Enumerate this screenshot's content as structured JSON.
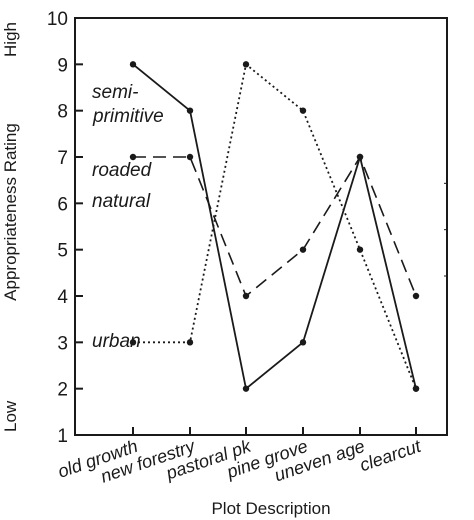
{
  "chart_data": {
    "type": "line",
    "title": "",
    "xlabel": "Plot Description",
    "ylabel": "Appropriateness Rating",
    "y_high_label": "High",
    "y_low_label": "Low",
    "ylim": [
      1,
      10
    ],
    "yticks": [
      "1",
      "2",
      "3",
      "4",
      "5",
      "6",
      "7",
      "8",
      "9",
      "10"
    ],
    "categories": [
      "old growth",
      "new forestry",
      "pastoral pk",
      "pine grove",
      "uneven age",
      "clearcut"
    ],
    "series": [
      {
        "name": "semi-primitive",
        "label_lines": [
          "semi-",
          "primitive"
        ],
        "style": "solid",
        "values": [
          9,
          8,
          2,
          3,
          7,
          2
        ]
      },
      {
        "name": "roaded natural",
        "label_lines": [
          "roaded",
          "natural"
        ],
        "style": "dashed",
        "values": [
          7,
          7,
          4,
          5,
          7,
          4
        ]
      },
      {
        "name": "urban",
        "label_lines": [
          "urban"
        ],
        "style": "dotted",
        "values": [
          3,
          3,
          9,
          8,
          5,
          2
        ]
      }
    ],
    "grid": false,
    "legend": "inline labels inside plot",
    "colors": {
      "lines": "#1a1a1a",
      "background": "#ffffff"
    }
  }
}
